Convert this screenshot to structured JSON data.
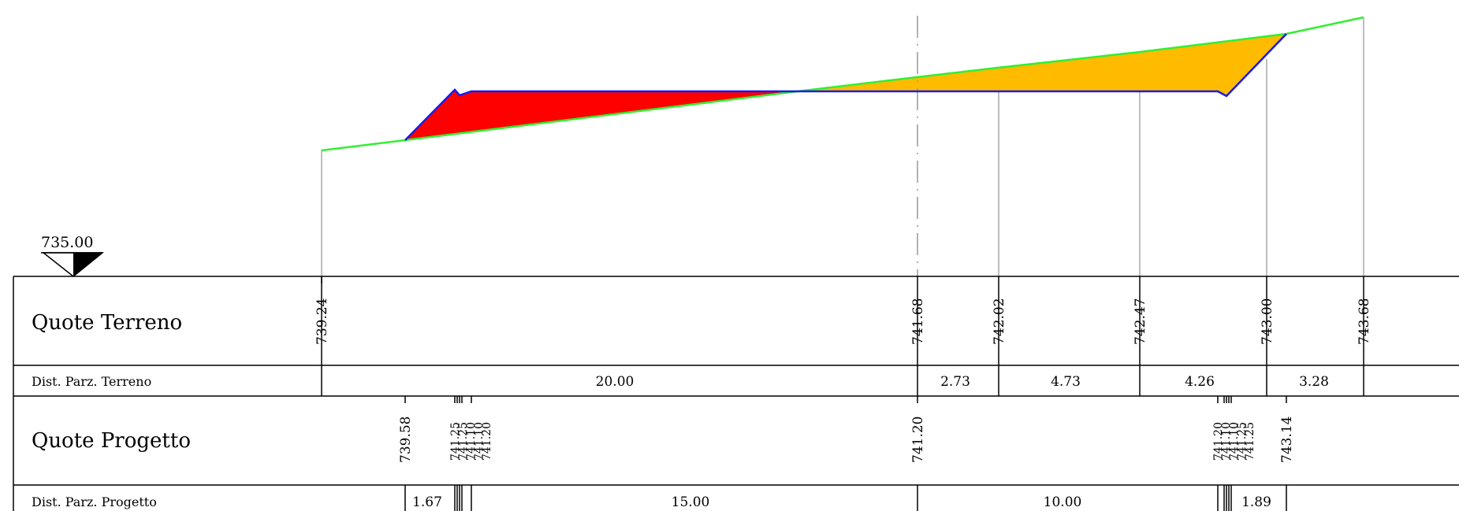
{
  "reference": {
    "elevation": "735.00"
  },
  "rows": {
    "quote_terreno": "Quote Terreno",
    "dist_terreno": "Dist. Parz. Terreno",
    "quote_progetto": "Quote Progetto",
    "dist_progetto": "Dist. Parz. Progetto"
  },
  "terrain": {
    "elevations": [
      "739.24",
      "741.68",
      "742.02",
      "742.47",
      "743.00",
      "743.68"
    ],
    "distances": [
      "20.00",
      "2.73",
      "4.73",
      "4.26",
      "3.28"
    ]
  },
  "project": {
    "elevations_left": [
      "739.58",
      "741.25",
      "741.25",
      "741.10",
      "741.10",
      "741.20"
    ],
    "elevation_axis": "741.20",
    "elevations_right": [
      "741.20",
      "741.10",
      "741.10",
      "741.25",
      "741.25",
      "743.14"
    ],
    "distances": [
      "1.67",
      "15.00",
      "10.00",
      "1.89"
    ]
  },
  "colors": {
    "terrain_line": "#33ee33",
    "project_line": "#1a1aee",
    "fill_embankment": "#ff0000",
    "fill_excavation": "#ffbb00"
  }
}
